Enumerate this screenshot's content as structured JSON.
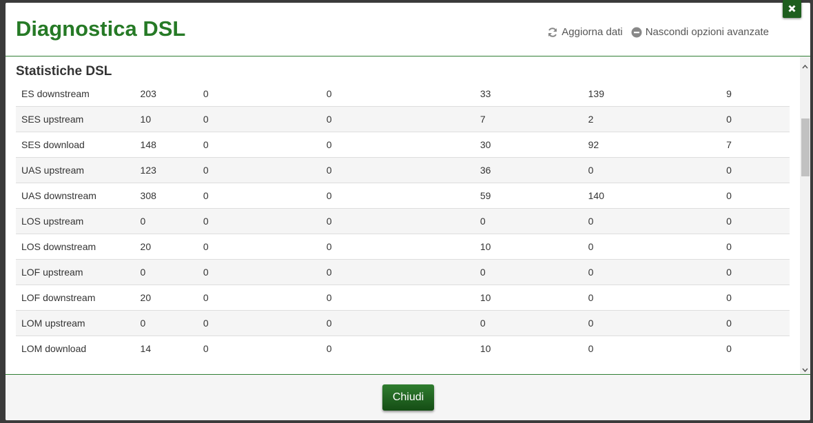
{
  "header": {
    "title": "Diagnostica DSL",
    "actions": [
      "Aggiorna dati",
      "Nascondi opzioni avanzate"
    ]
  },
  "section": {
    "title": "Statistiche DSL"
  },
  "table": {
    "rows": [
      [
        "ES downstream",
        203,
        0,
        0,
        33,
        139,
        9
      ],
      [
        "SES upstream",
        10,
        0,
        0,
        7,
        2,
        0
      ],
      [
        "SES download",
        148,
        0,
        0,
        30,
        92,
        7
      ],
      [
        "UAS upstream",
        123,
        0,
        0,
        36,
        0,
        0
      ],
      [
        "UAS downstream",
        308,
        0,
        0,
        59,
        140,
        0
      ],
      [
        "LOS upstream",
        0,
        0,
        0,
        0,
        0,
        0
      ],
      [
        "LOS downstream",
        20,
        0,
        0,
        10,
        0,
        0
      ],
      [
        "LOF upstream",
        0,
        0,
        0,
        0,
        0,
        0
      ],
      [
        "LOF downstream",
        20,
        0,
        0,
        10,
        0,
        0
      ],
      [
        "LOM upstream",
        0,
        0,
        0,
        0,
        0,
        0
      ],
      [
        "LOM download",
        14,
        0,
        0,
        10,
        0,
        0
      ]
    ]
  },
  "footer": {
    "button": "Chiudi"
  }
}
